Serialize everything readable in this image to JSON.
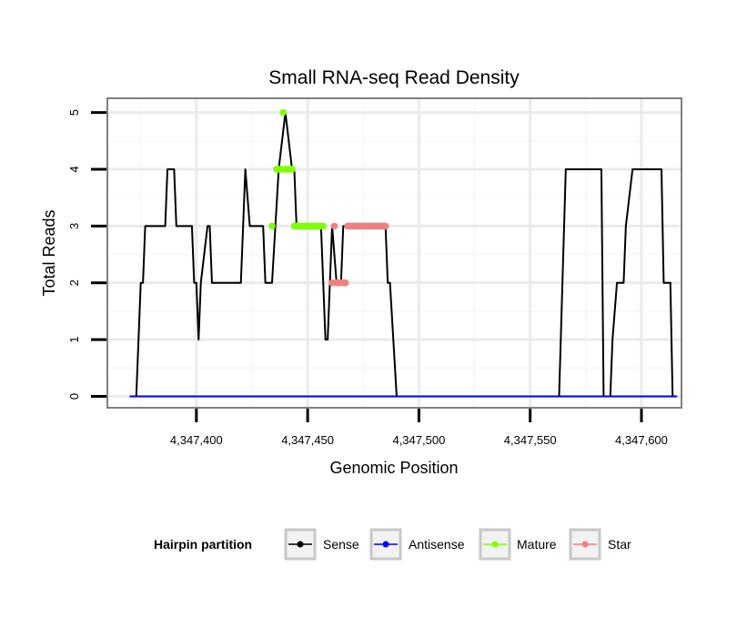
{
  "chart_data": {
    "type": "line",
    "title": "Small RNA-seq Read Density",
    "xlabel": "Genomic Position",
    "ylabel": "Total Reads",
    "xlim": [
      4347360,
      4347618
    ],
    "ylim": [
      -0.2,
      5.25
    ],
    "x_ticks": [
      4347400,
      4347450,
      4347500,
      4347550,
      4347600
    ],
    "x_tick_labels": [
      "4,347,400",
      "4,347,450",
      "4,347,500",
      "4,347,550",
      "4,347,600"
    ],
    "y_ticks": [
      0,
      1,
      2,
      3,
      4,
      5
    ],
    "y_tick_labels": [
      "0",
      "1",
      "2",
      "3",
      "4",
      "5"
    ],
    "grid": true,
    "legend": {
      "title": "Hairpin partition",
      "position": "bottom",
      "entries": [
        {
          "name": "Sense",
          "color": "#000000"
        },
        {
          "name": "Antisense",
          "color": "#0000ff"
        },
        {
          "name": "Mature",
          "color": "#7fff00"
        },
        {
          "name": "Star",
          "color": "#f08080"
        }
      ]
    },
    "series": [
      {
        "name": "Sense",
        "color": "#000000",
        "marker": false,
        "x": [
          4347370,
          4347373,
          4347374,
          4347375,
          4347376,
          4347377,
          4347386,
          4347387,
          4347390,
          4347391,
          4347398,
          4347399,
          4347400,
          4347401,
          4347402,
          4347405,
          4347406,
          4347407,
          4347420,
          4347422,
          4347424,
          4347430,
          4347431,
          4347434,
          4347437,
          4347440,
          4347443,
          4347444,
          4347445,
          4347456,
          4347457,
          4347458,
          4347459,
          4347461,
          4347463,
          4347465,
          4347466,
          4347469,
          4347470,
          4347485,
          4347486,
          4347487,
          4347490,
          4347563,
          4347566,
          4347582,
          4347583,
          4347586,
          4347587,
          4347589,
          4347592,
          4347593,
          4347596,
          4347597,
          4347609,
          4347610,
          4347613,
          4347614,
          4347616
        ],
        "y": [
          0,
          0,
          1,
          2,
          2,
          3,
          3,
          4,
          4,
          3,
          3,
          2,
          2,
          1,
          2,
          3,
          3,
          2,
          2,
          4,
          3,
          3,
          2,
          2,
          4,
          5,
          4,
          4,
          3,
          3,
          2,
          1,
          1,
          3,
          2,
          2,
          3,
          3,
          3,
          3,
          2,
          2,
          0,
          0,
          4,
          4,
          0,
          0,
          1,
          2,
          2,
          3,
          4,
          4,
          4,
          2,
          2,
          0,
          0
        ]
      },
      {
        "name": "Antisense",
        "color": "#0000ff",
        "marker": false,
        "x": [
          4347370,
          4347616
        ],
        "y": [
          0,
          0
        ]
      },
      {
        "name": "Mature",
        "color": "#7fff00",
        "marker": true,
        "x": [
          4347434,
          4347436,
          4347437,
          4347438,
          4347439,
          4347440,
          4347441,
          4347442,
          4347443,
          4347444,
          4347445,
          4347446,
          4347447,
          4347448,
          4347449,
          4347450,
          4347451,
          4347452,
          4347453,
          4347454,
          4347455,
          4347456,
          4347457
        ],
        "y": [
          3,
          4,
          4,
          4,
          5,
          4,
          4,
          4,
          4,
          3,
          3,
          3,
          3,
          3,
          3,
          3,
          3,
          3,
          3,
          3,
          3,
          3,
          3
        ]
      },
      {
        "name": "Star",
        "color": "#f08080",
        "marker": true,
        "x": [
          4347461,
          4347462,
          4347463,
          4347464,
          4347465,
          4347466,
          4347467,
          4347468,
          4347469,
          4347470,
          4347471,
          4347472,
          4347473,
          4347474,
          4347475,
          4347476,
          4347477,
          4347478,
          4347479,
          4347480,
          4347481,
          4347482,
          4347483,
          4347484,
          4347485
        ],
        "y": [
          2,
          3,
          2,
          2,
          2,
          2,
          2,
          3,
          3,
          3,
          3,
          3,
          3,
          3,
          3,
          3,
          3,
          3,
          3,
          3,
          3,
          3,
          3,
          3,
          3
        ]
      }
    ]
  }
}
